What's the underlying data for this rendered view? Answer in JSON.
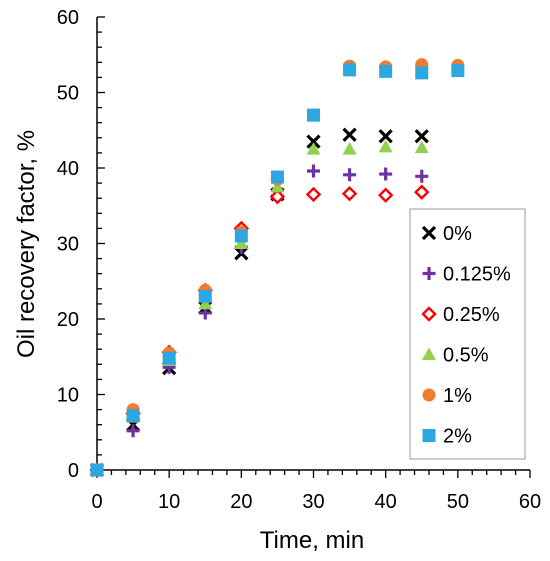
{
  "chart_data": {
    "type": "scatter",
    "title": "",
    "xlabel": "Time, min",
    "ylabel": "Oil recovery factor, %",
    "xlim": [
      0,
      60
    ],
    "ylim": [
      0,
      60
    ],
    "xticks": [
      0,
      10,
      20,
      30,
      40,
      50,
      60
    ],
    "yticks": [
      0,
      10,
      20,
      30,
      40,
      50,
      60
    ],
    "grid": false,
    "legend_position": "right",
    "series": [
      {
        "name": "0%",
        "marker": "x",
        "color": "#000000",
        "x": [
          0,
          5,
          10,
          15,
          20,
          25,
          30,
          35,
          40,
          45
        ],
        "y": [
          0,
          6,
          13.5,
          21.5,
          28.7,
          36.5,
          43.5,
          44.4,
          44.2,
          44.2
        ]
      },
      {
        "name": "0.125%",
        "marker": "plus",
        "color": "#7030A0",
        "x": [
          0,
          5,
          10,
          15,
          20,
          25,
          30,
          35,
          40,
          45
        ],
        "y": [
          0,
          5.2,
          13.6,
          20.8,
          29.5,
          36.3,
          39.6,
          39.1,
          39.2,
          38.9
        ]
      },
      {
        "name": "0.25%",
        "marker": "diamond-open",
        "color": "#FF0000",
        "x": [
          0,
          5,
          10,
          15,
          20,
          25,
          30,
          35,
          40,
          45
        ],
        "y": [
          0,
          7.5,
          15.6,
          23.8,
          32,
          36.2,
          36.5,
          36.6,
          36.4,
          36.8
        ]
      },
      {
        "name": "0.5%",
        "marker": "triangle",
        "color": "#92D050",
        "x": [
          0,
          5,
          10,
          15,
          20,
          25,
          30,
          35,
          40,
          45
        ],
        "y": [
          0,
          7,
          14.5,
          22,
          30,
          37.5,
          42.5,
          42.5,
          42.8,
          42.7
        ]
      },
      {
        "name": "1%",
        "marker": "circle",
        "color": "#ED7D31",
        "x": [
          0,
          5,
          10,
          15,
          20,
          25,
          30,
          35,
          40,
          45,
          50
        ],
        "y": [
          0,
          8,
          15.5,
          23.8,
          31.5,
          38.5,
          47,
          53.5,
          53.4,
          53.7,
          53.6
        ]
      },
      {
        "name": "2%",
        "marker": "square",
        "color": "#2EA6E0",
        "x": [
          0,
          5,
          10,
          15,
          20,
          25,
          30,
          35,
          40,
          45,
          50
        ],
        "y": [
          0,
          7.2,
          14.8,
          23,
          31,
          38.8,
          47,
          53,
          52.8,
          52.6,
          52.9
        ]
      }
    ]
  }
}
